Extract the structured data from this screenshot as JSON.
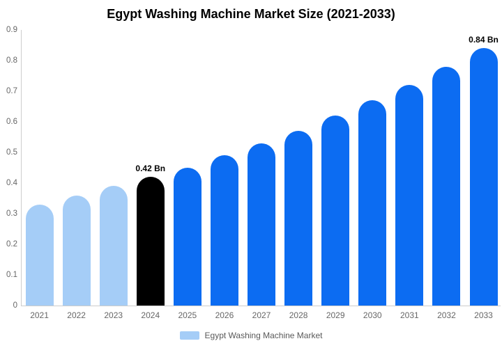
{
  "title": "Egypt Washing Machine Market Size (2021-2033)",
  "legend": {
    "label": "Egypt Washing Machine Market",
    "swatch_color": "#A5CDF7"
  },
  "colors": {
    "historical_bar": "#A5CDF7",
    "base_year_bar": "#000000",
    "forecast_bar": "#0C6CF2",
    "axis_line": "#CCCCCC",
    "tick_text": "#666666",
    "data_label_text": "#000000"
  },
  "chart_data": {
    "type": "bar",
    "title": "Egypt Washing Machine Market Size (2021-2033)",
    "categories": [
      "2021",
      "2022",
      "2023",
      "2024",
      "2025",
      "2026",
      "2027",
      "2028",
      "2029",
      "2030",
      "2031",
      "2032",
      "2033"
    ],
    "values": [
      0.33,
      0.36,
      0.39,
      0.42,
      0.45,
      0.49,
      0.53,
      0.57,
      0.62,
      0.67,
      0.72,
      0.78,
      0.84
    ],
    "unit": "Bn",
    "bar_colors": [
      "#A5CDF7",
      "#A5CDF7",
      "#A5CDF7",
      "#000000",
      "#0C6CF2",
      "#0C6CF2",
      "#0C6CF2",
      "#0C6CF2",
      "#0C6CF2",
      "#0C6CF2",
      "#0C6CF2",
      "#0C6CF2",
      "#0C6CF2"
    ],
    "data_labels": {
      "2024": "0.42 Bn",
      "2033": "0.84 Bn"
    },
    "xlabel": "",
    "ylabel": "",
    "ylim": [
      0,
      0.9
    ],
    "yticks": [
      "0.9",
      "0.8",
      "0.7",
      "0.6",
      "0.5",
      "0.4",
      "0.3",
      "0.2",
      "0.1",
      "0"
    ],
    "grid": false,
    "legend_position": "bottom-center"
  }
}
